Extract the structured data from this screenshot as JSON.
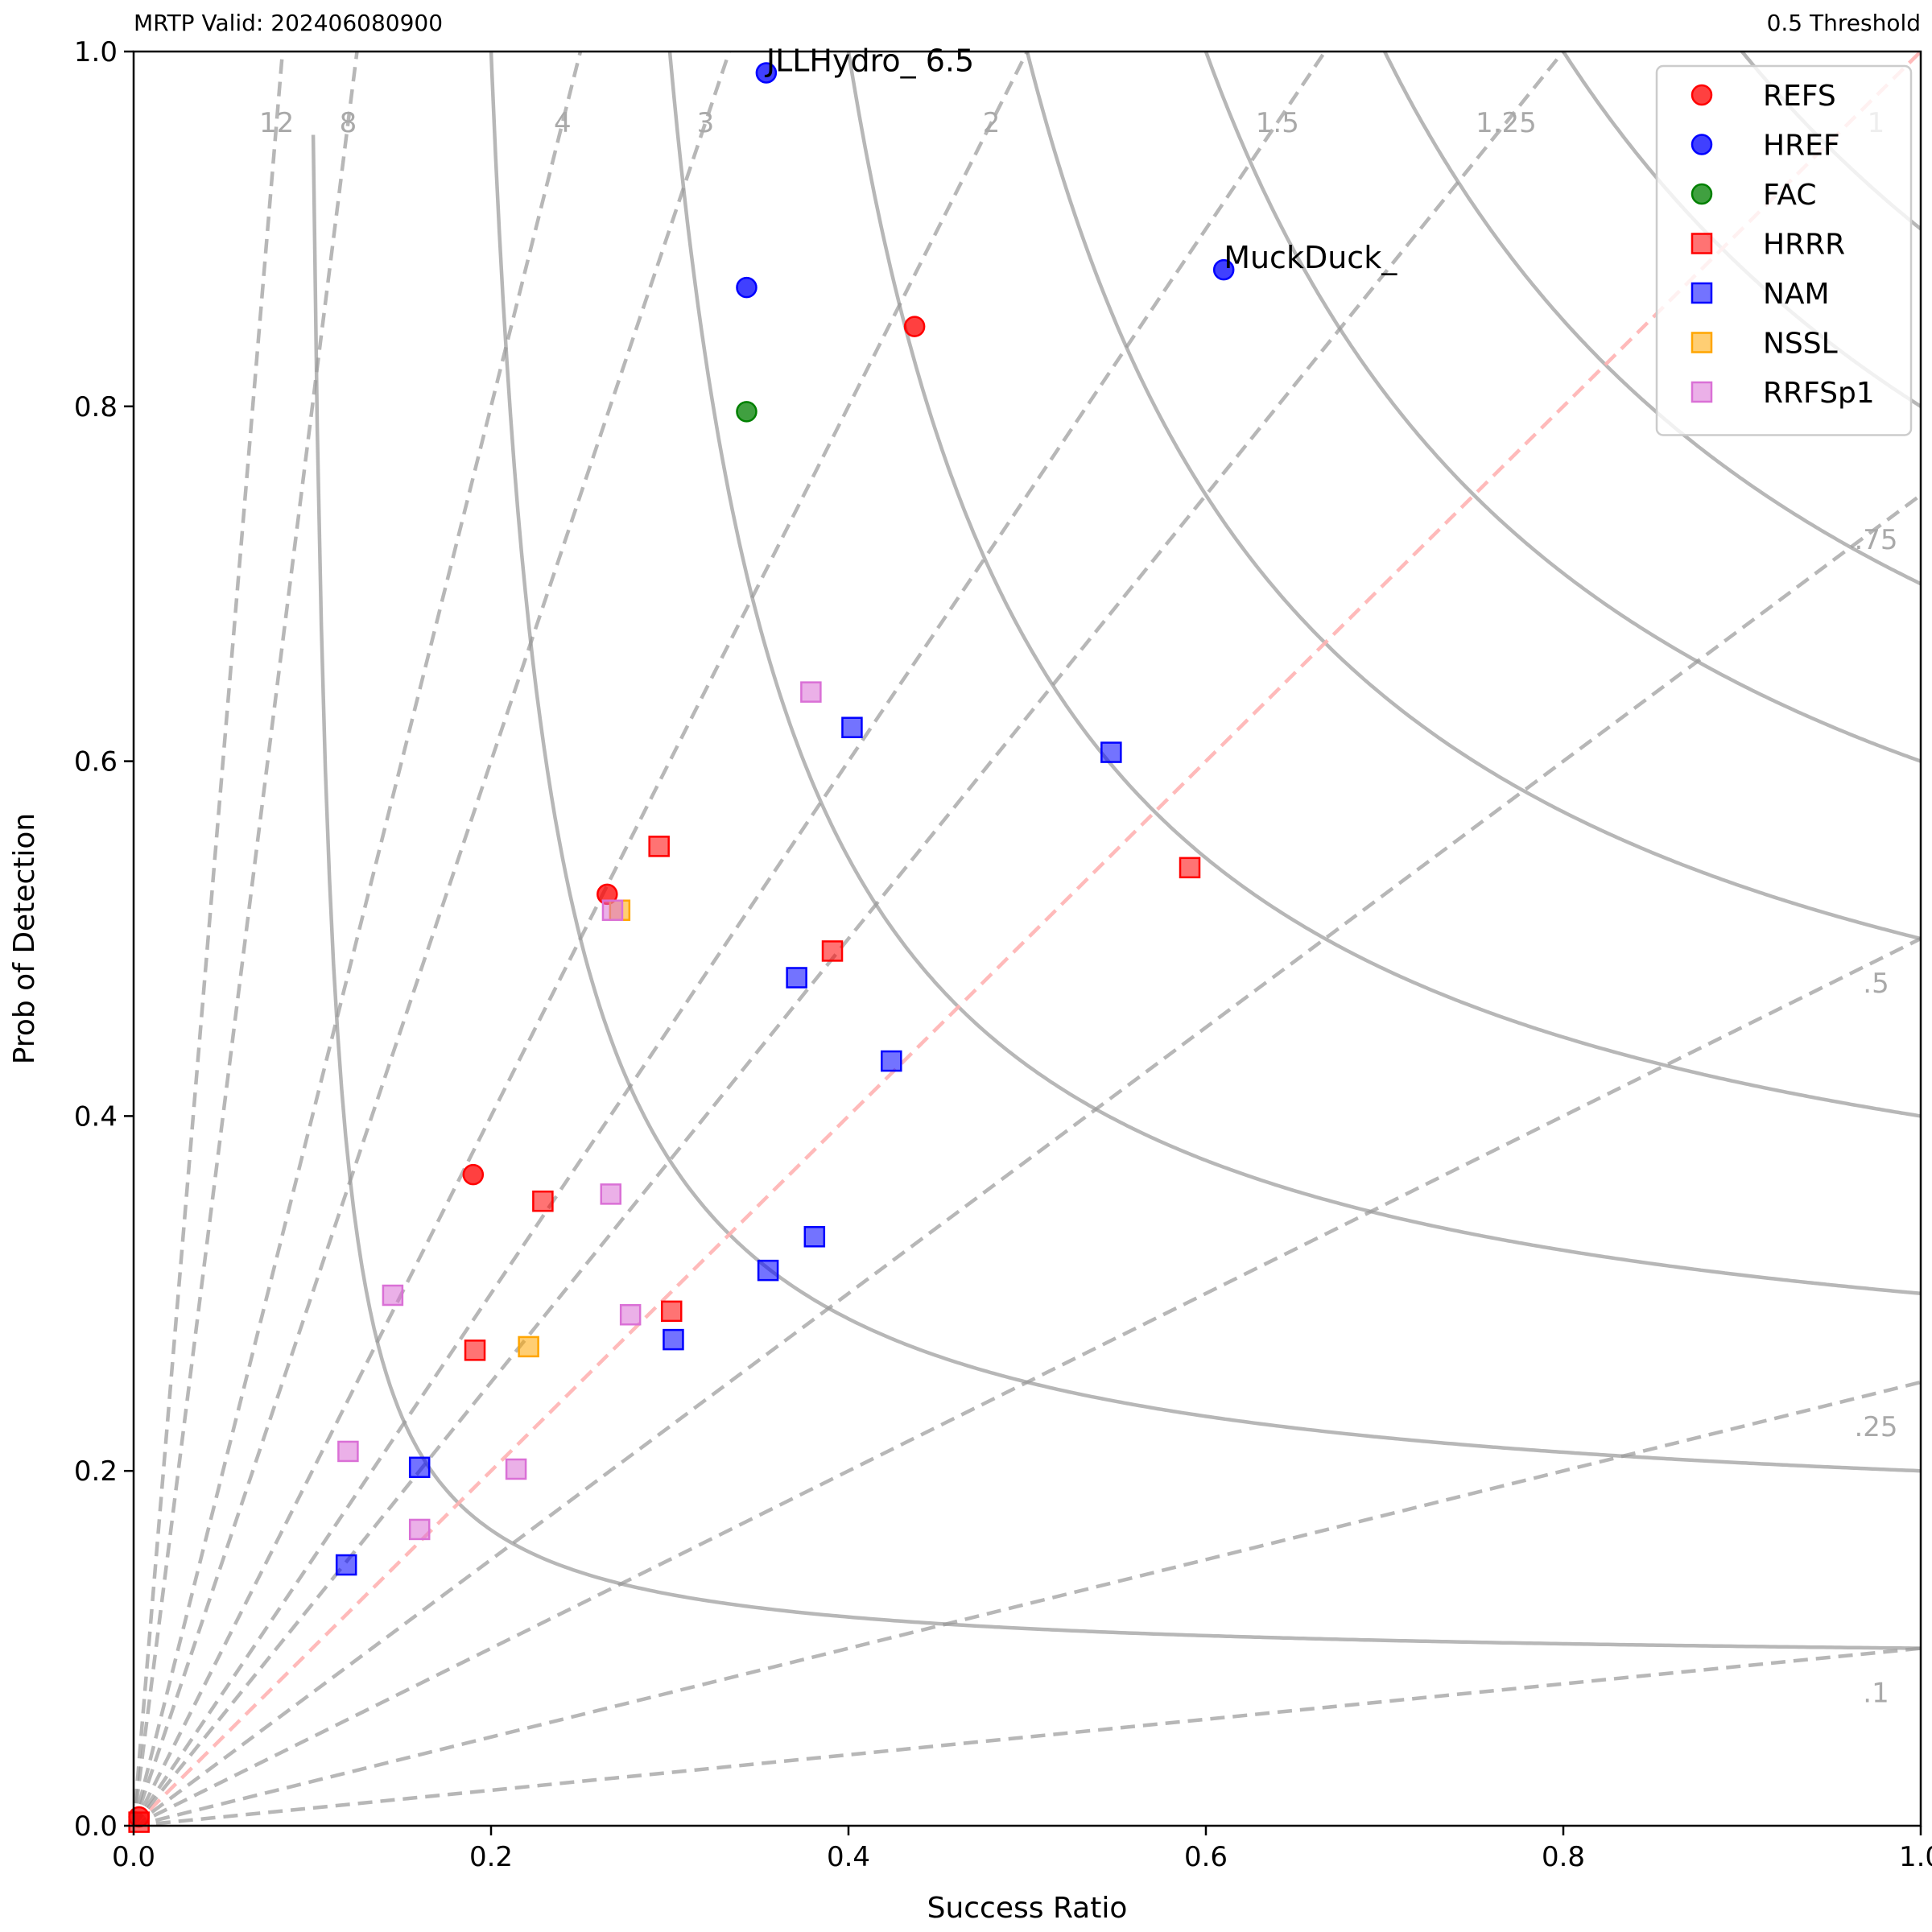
{
  "header": {
    "left": "MRTP Valid: 202406080900",
    "right": "0.5 Threshold"
  },
  "chart_data": {
    "type": "scatter",
    "xlabel": "Success Ratio",
    "ylabel": "Prob of Detection",
    "xlim": [
      0,
      1
    ],
    "ylim": [
      0,
      1
    ],
    "x_ticks": [
      "0.0",
      "0.2",
      "0.4",
      "0.6",
      "0.8",
      "1.0"
    ],
    "y_ticks": [
      "0.0",
      "0.2",
      "0.4",
      "0.6",
      "0.8",
      "1.0"
    ],
    "grid": false,
    "legend_position": "top-right",
    "csi_contours": [
      0.1,
      0.2,
      0.3,
      0.4,
      0.5,
      0.6,
      0.7,
      0.8,
      0.9
    ],
    "csi_labels": [
      ".1",
      ".25",
      ".5",
      ".75"
    ],
    "bias_lines": [
      {
        "value": 0.1,
        "label": ""
      },
      {
        "value": 0.25,
        "label": ""
      },
      {
        "value": 0.5,
        "label": ""
      },
      {
        "value": 0.75,
        "label": ""
      },
      {
        "value": 1,
        "label": "1"
      },
      {
        "value": 1.25,
        "label": "1.25"
      },
      {
        "value": 1.5,
        "label": "1.5"
      },
      {
        "value": 2,
        "label": "2"
      },
      {
        "value": 3,
        "label": "3"
      },
      {
        "value": 4,
        "label": "4"
      },
      {
        "value": 8,
        "label": "8"
      },
      {
        "value": 12,
        "label": "12"
      }
    ],
    "series": [
      {
        "name": "REFS",
        "marker": "circle",
        "color": "#ff0000",
        "points": [
          [
            0.437,
            0.845
          ],
          [
            0.265,
            0.525
          ],
          [
            0.19,
            0.367
          ],
          [
            0.003,
            0.005
          ]
        ]
      },
      {
        "name": "HREF",
        "marker": "circle",
        "color": "#0000ff",
        "points": [
          [
            0.354,
            0.988
          ],
          [
            0.343,
            0.867
          ],
          [
            0.61,
            0.877
          ]
        ]
      },
      {
        "name": "FAC",
        "marker": "circle",
        "color": "#008000",
        "points": [
          [
            0.343,
            0.797
          ]
        ]
      },
      {
        "name": "HRRR",
        "marker": "square",
        "color": "#ff0000",
        "points": [
          [
            0.294,
            0.552
          ],
          [
            0.391,
            0.493
          ],
          [
            0.229,
            0.352
          ],
          [
            0.301,
            0.29
          ],
          [
            0.191,
            0.268
          ],
          [
            0.591,
            0.54
          ],
          [
            0.003,
            0.002
          ]
        ]
      },
      {
        "name": "NAM",
        "marker": "square",
        "color": "#0000ff",
        "points": [
          [
            0.402,
            0.619
          ],
          [
            0.371,
            0.478
          ],
          [
            0.302,
            0.274
          ],
          [
            0.547,
            0.605
          ],
          [
            0.424,
            0.431
          ],
          [
            0.381,
            0.332
          ],
          [
            0.355,
            0.313
          ],
          [
            0.16,
            0.202
          ],
          [
            0.119,
            0.147
          ]
        ]
      },
      {
        "name": "NSSL",
        "marker": "square",
        "color": "#ffa500",
        "points": [
          [
            0.272,
            0.516
          ],
          [
            0.221,
            0.27
          ]
        ]
      },
      {
        "name": "RRFSp1",
        "marker": "square",
        "color": "#da70d6",
        "points": [
          [
            0.379,
            0.639
          ],
          [
            0.268,
            0.516
          ],
          [
            0.267,
            0.356
          ],
          [
            0.278,
            0.288
          ],
          [
            0.145,
            0.299
          ],
          [
            0.214,
            0.201
          ],
          [
            0.12,
            0.211
          ],
          [
            0.16,
            0.167
          ]
        ]
      }
    ],
    "annotations": [
      {
        "text": "JLLHydro_ 6.5",
        "x": 0.354,
        "y": 0.988
      },
      {
        "text": "MuckDuck_",
        "x": 0.61,
        "y": 0.877
      }
    ]
  }
}
